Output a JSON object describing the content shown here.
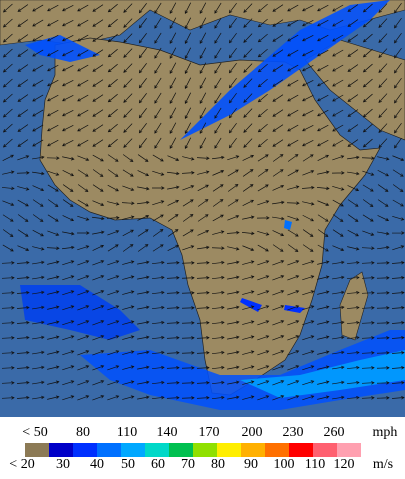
{
  "legend": {
    "mph_labels": [
      "< 50",
      "80",
      "110",
      "140",
      "170",
      "200",
      "230",
      "260"
    ],
    "mph_unit": "mph",
    "ms_labels": [
      "< 20",
      "30",
      "40",
      "50",
      "60",
      "70",
      "80",
      "90",
      "100",
      "110",
      "120"
    ],
    "ms_unit": "m/s",
    "colors": [
      "#8c7a55",
      "#0000c8",
      "#0030ff",
      "#0070ff",
      "#00a8ff",
      "#00d8c8",
      "#00c050",
      "#90e000",
      "#ffee00",
      "#ffb000",
      "#ff7000",
      "#ff0000",
      "#ff6070",
      "#ffa0b0"
    ]
  }
}
